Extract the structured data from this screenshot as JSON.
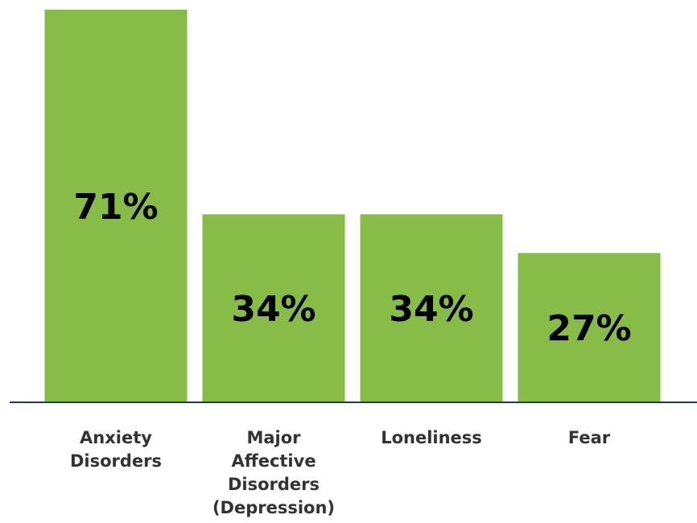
{
  "chart_data": {
    "type": "bar",
    "categories": [
      [
        "Anxiety",
        "Disorders"
      ],
      [
        "Major",
        "Affective",
        "Disorders",
        "(Depression)"
      ],
      [
        "Loneliness"
      ],
      [
        "Fear"
      ]
    ],
    "values": [
      71,
      34,
      34,
      27
    ],
    "value_labels": [
      "71%",
      "34%",
      "34%",
      "27%"
    ],
    "title": "",
    "xlabel": "",
    "ylabel": "",
    "ylim": [
      0,
      71
    ],
    "grid": false,
    "legend": "none"
  },
  "colors": {
    "bar": "#87bd47",
    "axis": "#1f3a5f",
    "value_text": "#000000",
    "label_text": "#333333"
  }
}
